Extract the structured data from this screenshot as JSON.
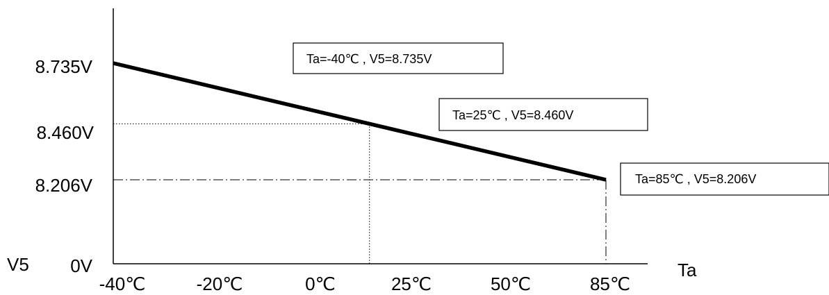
{
  "chart_data": {
    "type": "line",
    "xlabel": "Ta",
    "ylabel": "V5",
    "x_tick_labels": [
      "-40℃",
      "-20℃",
      "0℃",
      "25℃",
      "50℃",
      "85℃"
    ],
    "y_tick_labels": [
      "8.735V",
      "8.460V",
      "8.206V",
      "0V"
    ],
    "series": [
      {
        "x": [
          -40,
          85
        ],
        "y": [
          8.735,
          8.206
        ]
      }
    ],
    "reference_points": [
      {
        "x": 25,
        "y": 8.46,
        "guide_style": "dotted"
      },
      {
        "x": 85,
        "y": 8.206,
        "guide_style": "dash-dot"
      }
    ],
    "annotations": [
      {
        "text": "Ta=-40℃ , V5=8.735V"
      },
      {
        "text": "Ta=25℃ , V5=8.460V"
      },
      {
        "text": "Ta=85℃ , V5=8.206V"
      }
    ],
    "line_color": "#000000"
  }
}
